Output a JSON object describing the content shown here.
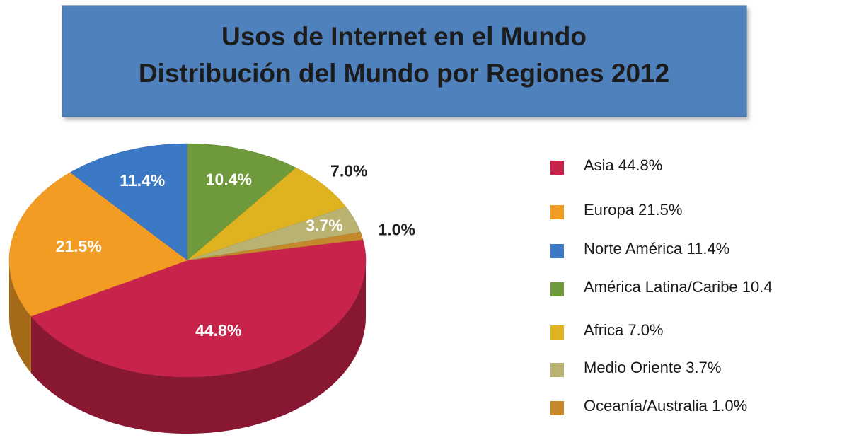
{
  "chart_data": {
    "type": "pie",
    "title": [
      "Usos de Internet en el Mundo",
      "Distribución del Mundo por Regiones 2012"
    ],
    "categories": [
      "Asia  44.8%",
      "Europa 21.5%",
      "Norte América 11.4%",
      "América Latina/Caribe 10.4",
      "Africa 7.0%",
      "Medio Oriente 3.7%",
      "Oceanía/Australia 1.0%"
    ],
    "values": [
      44.8,
      21.5,
      11.4,
      10.4,
      7.0,
      3.7,
      1.0
    ],
    "value_labels": [
      "44.8%",
      "21.5%",
      "11.4%",
      "10.4%",
      "7.0%",
      "3.7%",
      "1.0%"
    ],
    "colors": [
      "#c8234a",
      "#f39c23",
      "#3b78c6",
      "#6f9a3b",
      "#dfb21f",
      "#b9b271",
      "#c5892c"
    ],
    "legend": "right"
  }
}
